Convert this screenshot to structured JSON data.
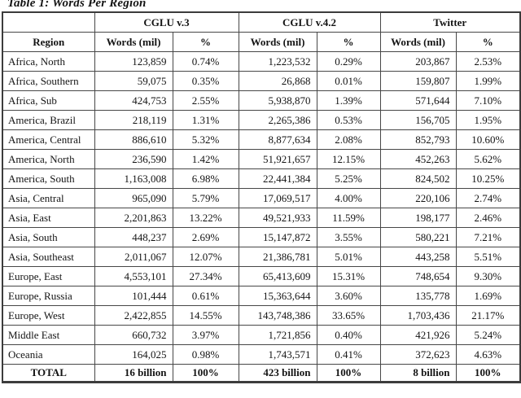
{
  "title": "Table 1: Words Per Region",
  "colors": {
    "background": "#ffffff",
    "text": "#141414",
    "border": "#3c3c3c"
  },
  "table": {
    "group_headers": [
      "",
      "CGLU v.3",
      "CGLU v.4.2",
      "Twitter"
    ],
    "col_headers": [
      "Region",
      "Words (mil)",
      "%",
      "Words (mil)",
      "%",
      "Words (mil)",
      "%"
    ],
    "rows": [
      [
        "Africa, North",
        "123,859",
        "0.74%",
        "1,223,532",
        "0.29%",
        "203,867",
        "2.53%"
      ],
      [
        "Africa, Southern",
        "59,075",
        "0.35%",
        "26,868",
        "0.01%",
        "159,807",
        "1.99%"
      ],
      [
        "Africa, Sub",
        "424,753",
        "2.55%",
        "5,938,870",
        "1.39%",
        "571,644",
        "7.10%"
      ],
      [
        "America, Brazil",
        "218,119",
        "1.31%",
        "2,265,386",
        "0.53%",
        "156,705",
        "1.95%"
      ],
      [
        "America, Central",
        "886,610",
        "5.32%",
        "8,877,634",
        "2.08%",
        "852,793",
        "10.60%"
      ],
      [
        "America, North",
        "236,590",
        "1.42%",
        "51,921,657",
        "12.15%",
        "452,263",
        "5.62%"
      ],
      [
        "America, South",
        "1,163,008",
        "6.98%",
        "22,441,384",
        "5.25%",
        "824,502",
        "10.25%"
      ],
      [
        "Asia, Central",
        "965,090",
        "5.79%",
        "17,069,517",
        "4.00%",
        "220,106",
        "2.74%"
      ],
      [
        "Asia, East",
        "2,201,863",
        "13.22%",
        "49,521,933",
        "11.59%",
        "198,177",
        "2.46%"
      ],
      [
        "Asia, South",
        "448,237",
        "2.69%",
        "15,147,872",
        "3.55%",
        "580,221",
        "7.21%"
      ],
      [
        "Asia, Southeast",
        "2,011,067",
        "12.07%",
        "21,386,781",
        "5.01%",
        "443,258",
        "5.51%"
      ],
      [
        "Europe, East",
        "4,553,101",
        "27.34%",
        "65,413,609",
        "15.31%",
        "748,654",
        "9.30%"
      ],
      [
        "Europe, Russia",
        "101,444",
        "0.61%",
        "15,363,644",
        "3.60%",
        "135,778",
        "1.69%"
      ],
      [
        "Europe, West",
        "2,422,855",
        "14.55%",
        "143,748,386",
        "33.65%",
        "1,703,436",
        "21.17%"
      ],
      [
        "Middle East",
        "660,732",
        "3.97%",
        "1,721,856",
        "0.40%",
        "421,926",
        "5.24%"
      ],
      [
        "Oceania",
        "164,025",
        "0.98%",
        "1,743,571",
        "0.41%",
        "372,623",
        "4.63%"
      ]
    ],
    "total_row": [
      "TOTAL",
      "16 billion",
      "100%",
      "423 billion",
      "100%",
      "8 billion",
      "100%"
    ]
  }
}
